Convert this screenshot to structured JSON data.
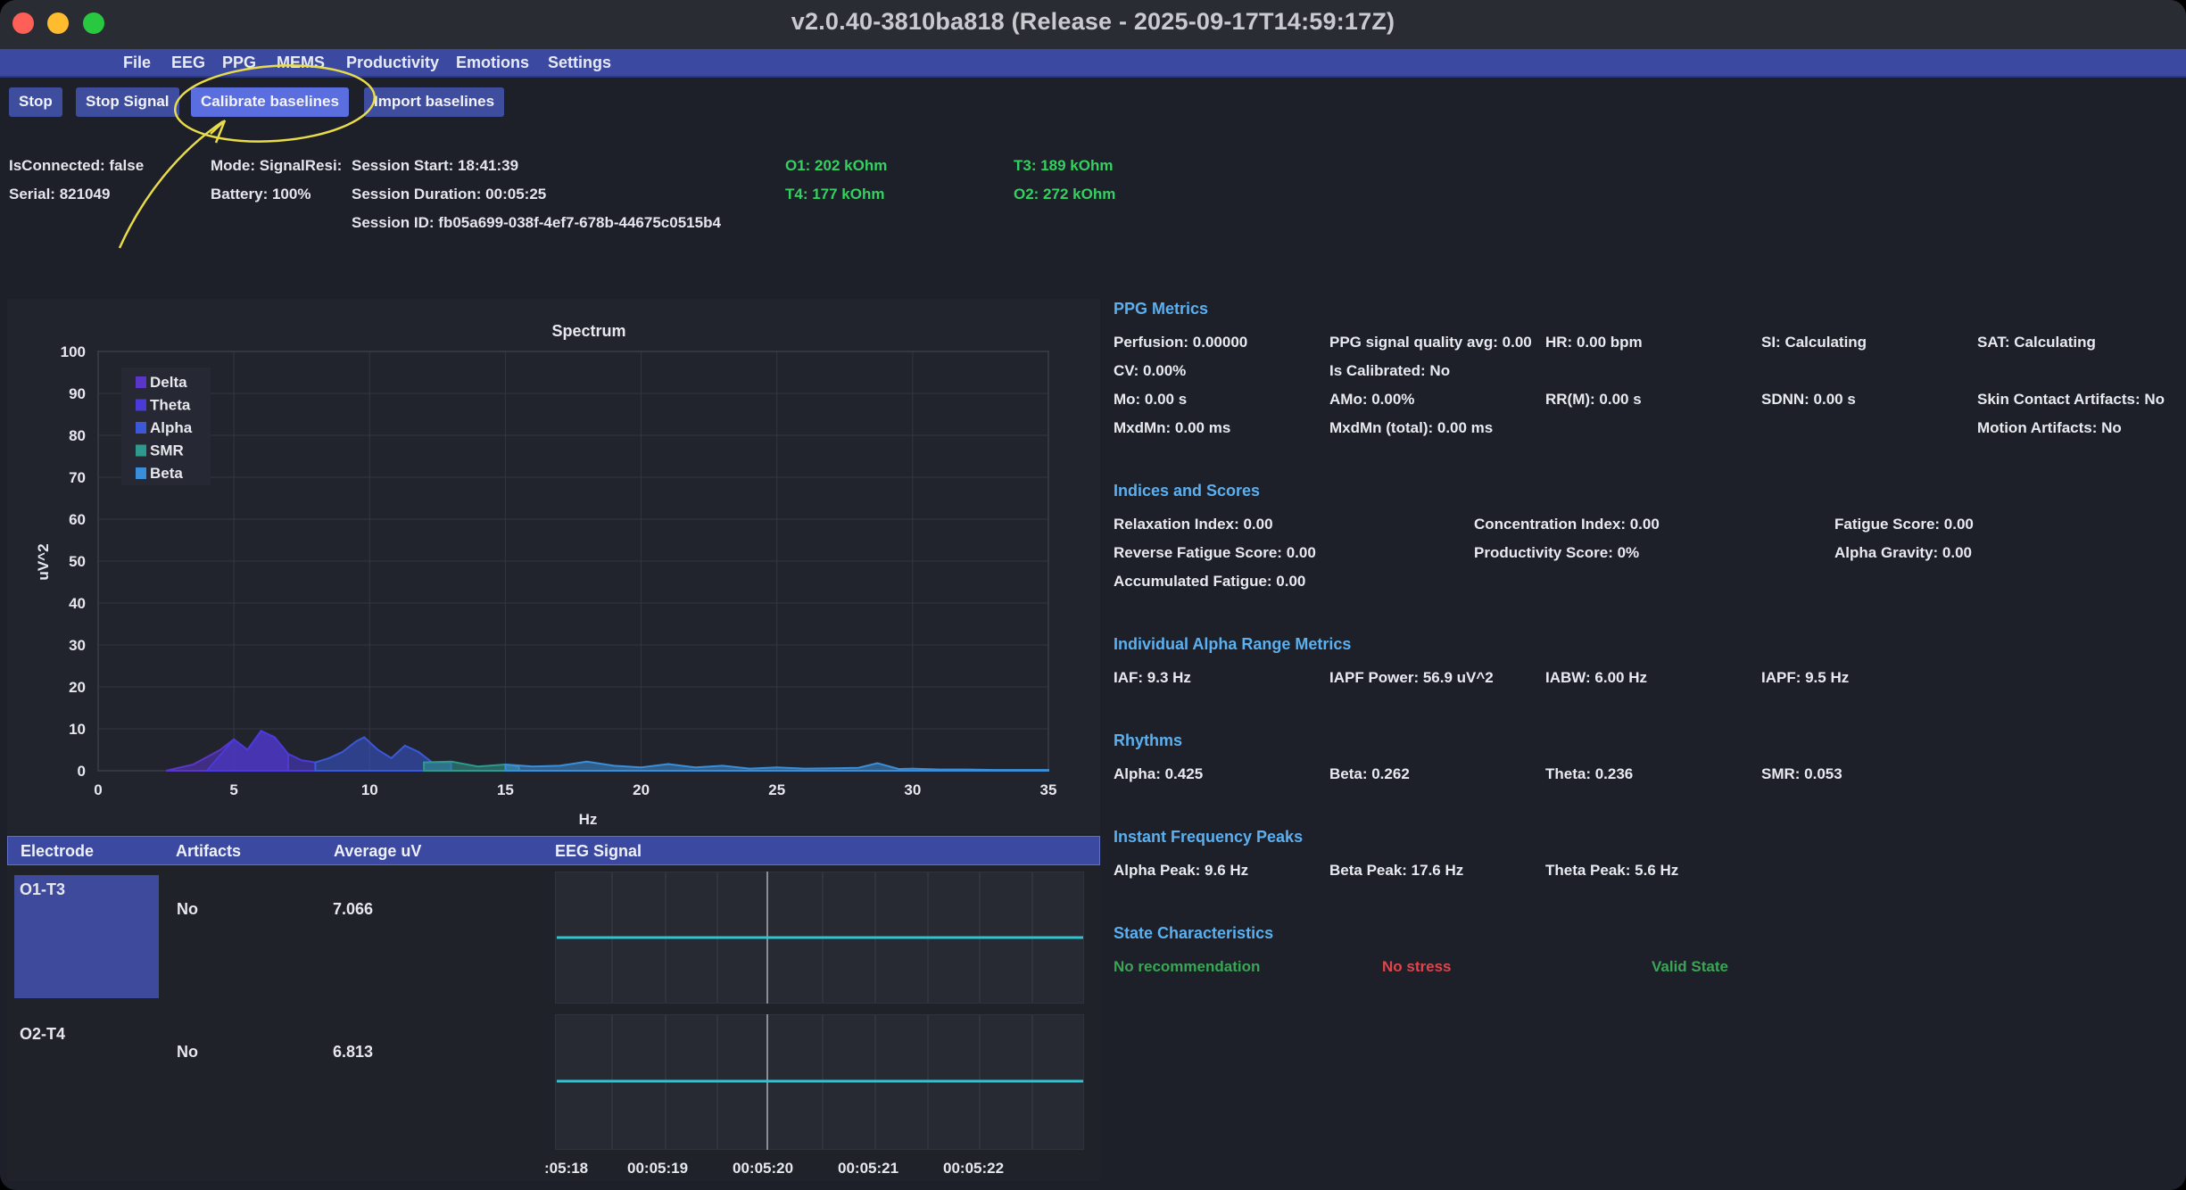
{
  "window": {
    "title": "v2.0.40-3810ba818 (Release - 2025-09-17T14:59:17Z)"
  },
  "menu": [
    "File",
    "EEG",
    "PPG",
    "MEMS",
    "Productivity",
    "Emotions",
    "Settings"
  ],
  "toolbar": {
    "stop": "Stop",
    "stop_signal": "Stop Signal",
    "calibrate": "Calibrate baselines",
    "import": "Import baselines"
  },
  "status": {
    "is_connected": "IsConnected: false",
    "serial": "Serial: 821049",
    "mode": "Mode: SignalResi:",
    "battery": "Battery: 100%",
    "session_start": "Session Start: 18:41:39",
    "session_duration": "Session Duration: 00:05:25",
    "session_id": "Session ID: fb05a699-038f-4ef7-678b-44675c0515b4",
    "o1": "O1: 202 kOhm",
    "t4": "T4: 177 kOhm",
    "t3": "T3: 189 kOhm",
    "o2": "O2: 272 kOhm"
  },
  "colors": {
    "accent": "#3b4aa0",
    "active_button": "#5b6ee0",
    "good": "#34d160",
    "stress": "#e0454b",
    "section": "#5ab0f0",
    "signal": "#2ec4d0"
  },
  "chart_data": {
    "type": "area",
    "title": "Spectrum",
    "xlabel": "Hz",
    "ylabel": "uV^2",
    "xlim": [
      0,
      35
    ],
    "ylim": [
      0,
      100
    ],
    "x_ticks": [
      0,
      5,
      10,
      15,
      20,
      25,
      30,
      35
    ],
    "y_ticks": [
      0,
      10,
      20,
      30,
      40,
      50,
      60,
      70,
      80,
      90,
      100
    ],
    "grid": true,
    "legend_position": "top-left",
    "series": [
      {
        "name": "Delta",
        "color": "#5a36c8",
        "x": [
          2.5,
          3.5,
          4.5,
          5.0,
          5.5,
          6.0,
          6.5,
          7.0
        ],
        "y": [
          0,
          1.5,
          5,
          7.5,
          5,
          9.5,
          8,
          4
        ]
      },
      {
        "name": "Theta",
        "color": "#4a3ad8",
        "x": [
          4.0,
          5.0,
          5.5,
          6.0,
          6.5,
          7.0,
          7.5,
          8.0
        ],
        "y": [
          0,
          7.5,
          5,
          9.5,
          8,
          4,
          2.5,
          2
        ]
      },
      {
        "name": "Alpha",
        "color": "#3a58d8",
        "x": [
          8.0,
          8.5,
          9.0,
          9.5,
          9.8,
          10.3,
          10.8,
          11.3,
          11.8,
          12.3,
          13.0
        ],
        "y": [
          2,
          3,
          4.5,
          7,
          8,
          5,
          3,
          6,
          4.5,
          2,
          2
        ]
      },
      {
        "name": "SMR",
        "color": "#2e9a8e",
        "x": [
          12.0,
          13.0,
          14.0,
          15.0,
          15.5
        ],
        "y": [
          2,
          2.2,
          1,
          1.5,
          1
        ]
      },
      {
        "name": "Beta",
        "color": "#3a8ed8",
        "x": [
          15.0,
          16.0,
          17.0,
          18.0,
          19.0,
          20.0,
          21.0,
          22.0,
          23.0,
          24.0,
          25.0,
          26.0,
          27.0,
          28.0,
          28.7,
          29.5,
          30.0,
          31.0,
          32.0,
          33.0,
          34.0,
          35.0
        ],
        "y": [
          1.5,
          1,
          1.2,
          2.2,
          1.2,
          0.8,
          1.6,
          0.8,
          1.2,
          0.5,
          0.8,
          0.5,
          0.6,
          0.7,
          1.8,
          0.4,
          0.5,
          0.3,
          0.3,
          0.2,
          0.2,
          0.2
        ]
      }
    ]
  },
  "table": {
    "headers": [
      "Electrode",
      "Artifacts",
      "Average uV",
      "EEG Signal"
    ],
    "rows": [
      {
        "electrode": "O1-T3",
        "artifacts": "No",
        "average": "7.066"
      },
      {
        "electrode": "O2-T4",
        "artifacts": "No",
        "average": "6.813"
      }
    ],
    "time_ticks": [
      ":05:18",
      "00:05:19",
      "00:05:20",
      "00:05:21",
      "00:05:22"
    ]
  },
  "ppg": {
    "title": "PPG Metrics",
    "perfusion": "Perfusion: 0.00000",
    "quality": "PPG signal quality avg: 0.00",
    "hr": "HR: 0.00 bpm",
    "si": "SI: Calculating",
    "sat": "SAT: Calculating",
    "cv": "CV: 0.00%",
    "calibrated": "Is Calibrated: No",
    "mo": "Mo: 0.00 s",
    "amo": "AMo: 0.00%",
    "rrm": "RR(M): 0.00 s",
    "sdnn": "SDNN: 0.00 s",
    "skin": "Skin Contact Artifacts: No",
    "mxdmn": "MxdMn: 0.00 ms",
    "mxdmn_total": "MxdMn (total): 0.00 ms",
    "motion": "Motion Artifacts: No"
  },
  "indices": {
    "title": "Indices and Scores",
    "relaxation": "Relaxation Index: 0.00",
    "concentration": "Concentration Index: 0.00",
    "fatigue": "Fatigue Score: 0.00",
    "reverse_fatigue": "Reverse Fatigue Score: 0.00",
    "productivity": "Productivity Score: 0%",
    "alpha_gravity": "Alpha Gravity: 0.00",
    "accumulated": "Accumulated Fatigue: 0.00"
  },
  "alpha": {
    "title": "Individual Alpha Range Metrics",
    "iaf": "IAF: 9.3 Hz",
    "iapf_power": "IAPF Power: 56.9 uV^2",
    "iabw": "IABW: 6.00 Hz",
    "iapf": "IAPF: 9.5 Hz"
  },
  "rhythms": {
    "title": "Rhythms",
    "alpha": "Alpha: 0.425",
    "beta": "Beta: 0.262",
    "theta": "Theta: 0.236",
    "smr": "SMR: 0.053"
  },
  "peaks": {
    "title": "Instant Frequency Peaks",
    "alpha": "Alpha Peak: 9.6 Hz",
    "beta": "Beta Peak: 17.6 Hz",
    "theta": "Theta Peak: 5.6 Hz"
  },
  "state": {
    "title": "State Characteristics",
    "recommendation": "No recommendation",
    "stress": "No stress",
    "valid": "Valid State"
  }
}
